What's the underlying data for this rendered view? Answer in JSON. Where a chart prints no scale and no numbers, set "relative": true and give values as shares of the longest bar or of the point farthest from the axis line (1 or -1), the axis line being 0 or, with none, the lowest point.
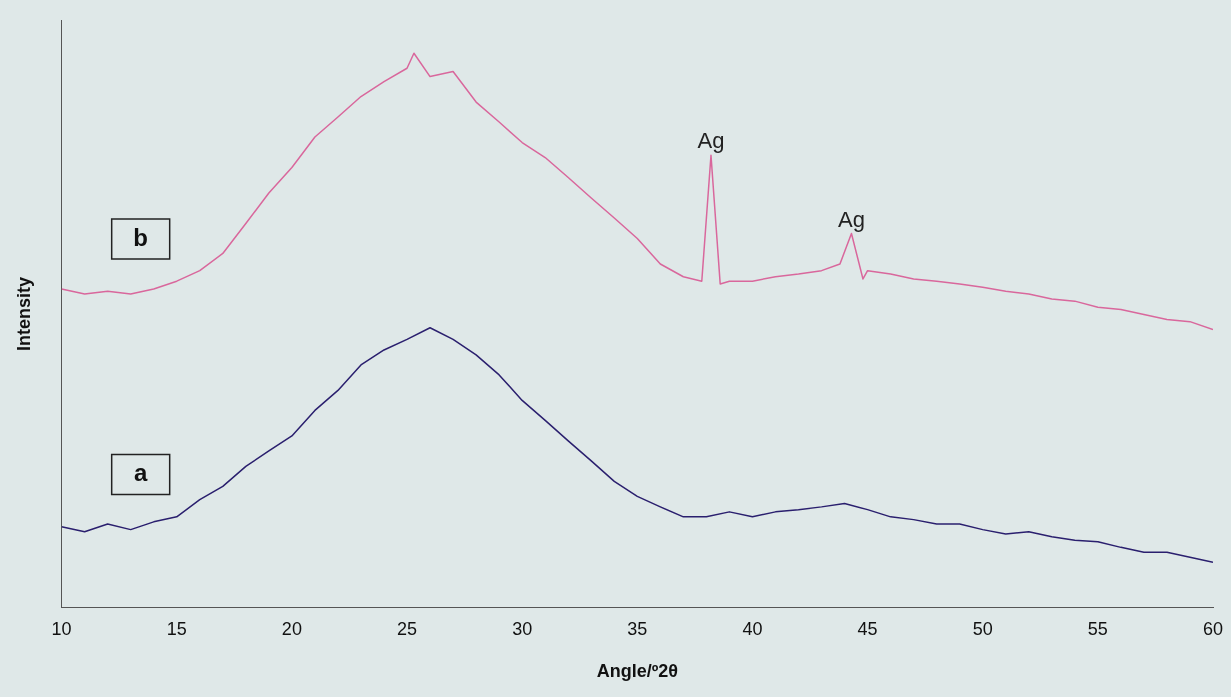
{
  "chart_data": {
    "type": "line",
    "relative": true,
    "xlabel": "Angle/º2θ",
    "ylabel": "Intensity",
    "xlim": [
      10,
      60
    ],
    "xticks": [
      10,
      15,
      20,
      25,
      30,
      35,
      40,
      45,
      50,
      55,
      60
    ],
    "grid": false,
    "legend": false,
    "marker": "none",
    "line_style": "solid",
    "annotations": [
      {
        "text": "Ag",
        "x": 38.2,
        "y": 0.816
      },
      {
        "text": "Ag",
        "x": 44.3,
        "y": 0.675
      }
    ],
    "series": [
      {
        "name": "a",
        "color": "#2a1f6e",
        "x": [
          10,
          11,
          12,
          13,
          14,
          15,
          16,
          17,
          18,
          19,
          20,
          21,
          22,
          23,
          24,
          25,
          26,
          27,
          28,
          29,
          30,
          31,
          32,
          33,
          34,
          35,
          36,
          37,
          38,
          39,
          40,
          41,
          42,
          43,
          44,
          45,
          46,
          47,
          48,
          49,
          50,
          51,
          52,
          53,
          54,
          55,
          56,
          57,
          58,
          59,
          60
        ],
        "values": [
          0.146,
          0.137,
          0.151,
          0.141,
          0.155,
          0.164,
          0.195,
          0.219,
          0.255,
          0.283,
          0.31,
          0.356,
          0.392,
          0.438,
          0.465,
          0.484,
          0.505,
          0.484,
          0.456,
          0.42,
          0.374,
          0.338,
          0.301,
          0.265,
          0.228,
          0.201,
          0.182,
          0.164,
          0.164,
          0.173,
          0.164,
          0.173,
          0.177,
          0.182,
          0.188,
          0.177,
          0.164,
          0.159,
          0.151,
          0.151,
          0.141,
          0.133,
          0.137,
          0.128,
          0.122,
          0.119,
          0.109,
          0.1,
          0.1,
          0.091,
          0.082
        ]
      },
      {
        "name": "b",
        "color": "#d9679c",
        "x": [
          10,
          11,
          12,
          13,
          14,
          15,
          16,
          17,
          18,
          19,
          20,
          21,
          22,
          23,
          24,
          25,
          25.3,
          26,
          27,
          28,
          29,
          30,
          31,
          32,
          33,
          34,
          35,
          36,
          37,
          37.8,
          38.2,
          38.6,
          39,
          40,
          41,
          42,
          43,
          43.8,
          44.3,
          44.8,
          45,
          46,
          47,
          48,
          49,
          50,
          51,
          52,
          53,
          54,
          55,
          56,
          57,
          58,
          59,
          60
        ],
        "values": [
          0.575,
          0.566,
          0.571,
          0.566,
          0.575,
          0.589,
          0.608,
          0.639,
          0.693,
          0.748,
          0.794,
          0.849,
          0.885,
          0.922,
          0.949,
          0.973,
          1,
          0.958,
          0.967,
          0.912,
          0.876,
          0.839,
          0.812,
          0.776,
          0.739,
          0.703,
          0.666,
          0.62,
          0.597,
          0.589,
          0.816,
          0.584,
          0.589,
          0.589,
          0.597,
          0.602,
          0.608,
          0.62,
          0.675,
          0.593,
          0.608,
          0.602,
          0.593,
          0.589,
          0.584,
          0.578,
          0.571,
          0.566,
          0.557,
          0.553,
          0.542,
          0.538,
          0.529,
          0.52,
          0.516,
          0.502
        ]
      }
    ]
  }
}
